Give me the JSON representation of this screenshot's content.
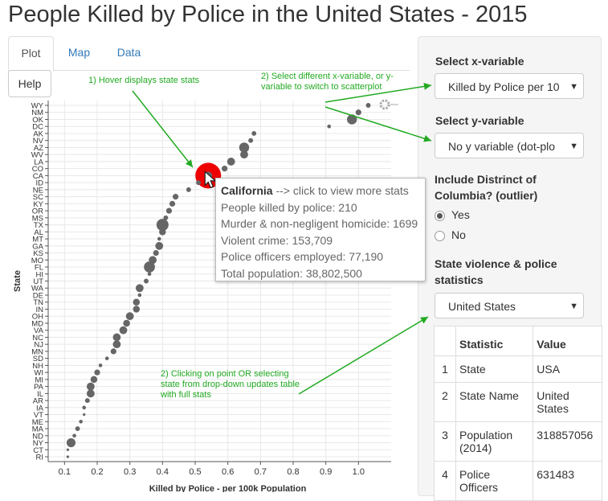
{
  "page_title": "People Killed by Police in the United States - 2015",
  "tabs": [
    {
      "label": "Plot"
    },
    {
      "label": "Map"
    },
    {
      "label": "Data"
    }
  ],
  "help_label": "Help",
  "sidebar": {
    "x_label": "Select x-variable",
    "x_value": "Killed by Police per 10",
    "y_label": "Select y-variable",
    "y_value": "No y variable (dot-plo",
    "dc_label": "Include Distrinct of Columbia? (outlier)",
    "dc_options": [
      {
        "label": "Yes",
        "selected": true
      },
      {
        "label": "No",
        "selected": false
      }
    ],
    "stats_label": "State violence & police statistics",
    "stats_value": "United States",
    "table": {
      "headers": [
        "",
        "Statistic",
        "Value"
      ],
      "rows": [
        {
          "idx": "1",
          "stat": "State",
          "value": "USA"
        },
        {
          "idx": "2",
          "stat": "State Name",
          "value": "United States"
        },
        {
          "idx": "3",
          "stat": "Population (2014)",
          "value": "318857056"
        },
        {
          "idx": "4",
          "stat": "Police Officers",
          "value": "631483"
        }
      ]
    }
  },
  "tooltip": {
    "state": "California",
    "hint": "--> click to view more stats",
    "lines": [
      "People killed by police: 210",
      "Murder & non-negligent homicide: 1699",
      "Violent crime: 153,709",
      "Police officers employed: 77,190",
      "Total population: 38,802,500"
    ]
  },
  "annotations": {
    "hover": "1) Hover displays state stats",
    "select": "2) Select different x-variable, or y-variable to switch to scatterplot",
    "click": "2) Clicking on point OR selecting state from drop-down updates table with full stats"
  },
  "colors": {
    "point": "#666666",
    "highlight": "#ee0000",
    "annotation": "#22aa22"
  },
  "chart_data": {
    "type": "scatter",
    "xlabel": "Killed by Police - per 100k Population",
    "ylabel": "State",
    "xlim": [
      0.05,
      1.1
    ],
    "xticks": [
      0.1,
      0.2,
      0.3,
      0.4,
      0.5,
      0.6,
      0.7,
      0.8,
      0.9,
      1.0
    ],
    "tick_labels": [
      "0.1",
      "0.2",
      "0.3",
      "0.4",
      "0.5",
      "0.6",
      "0.7",
      "0.8",
      "0.9",
      "1.0"
    ],
    "categories": [
      "WY",
      "NM",
      "OK",
      "DC",
      "AK",
      "NV",
      "AZ",
      "WV",
      "LA",
      "CO",
      "CA",
      "ID",
      "NE",
      "SC",
      "KY",
      "OR",
      "MS",
      "TX",
      "AL",
      "MT",
      "GA",
      "KS",
      "MO",
      "FL",
      "HI",
      "UT",
      "WA",
      "DE",
      "TN",
      "IN",
      "OH",
      "MD",
      "VA",
      "NC",
      "NJ",
      "MN",
      "SD",
      "NH",
      "WI",
      "MI",
      "PA",
      "IL",
      "AR",
      "IA",
      "VT",
      "ME",
      "MA",
      "ND",
      "NY",
      "CT",
      "RI"
    ],
    "values": [
      1.03,
      1.0,
      0.98,
      0.91,
      0.68,
      0.67,
      0.65,
      0.65,
      0.61,
      0.59,
      0.54,
      0.51,
      0.48,
      0.44,
      0.43,
      0.42,
      0.41,
      0.4,
      0.4,
      0.39,
      0.39,
      0.38,
      0.37,
      0.36,
      0.36,
      0.35,
      0.33,
      0.33,
      0.32,
      0.32,
      0.3,
      0.29,
      0.28,
      0.26,
      0.26,
      0.25,
      0.23,
      0.21,
      0.2,
      0.19,
      0.18,
      0.18,
      0.17,
      0.16,
      0.16,
      0.15,
      0.14,
      0.13,
      0.12,
      0.11,
      0.11
    ],
    "sizes": [
      3,
      4,
      8,
      2,
      3,
      3,
      8,
      6,
      6,
      4,
      6,
      3,
      3,
      4,
      4,
      4,
      3,
      10,
      5,
      2,
      6,
      4,
      6,
      9,
      2,
      3,
      6,
      2,
      5,
      5,
      6,
      5,
      6,
      6,
      6,
      4,
      2,
      2,
      4,
      5,
      6,
      6,
      3,
      2,
      1,
      2,
      3,
      2,
      7,
      1,
      1
    ],
    "highlight": "CA",
    "grid": true
  }
}
